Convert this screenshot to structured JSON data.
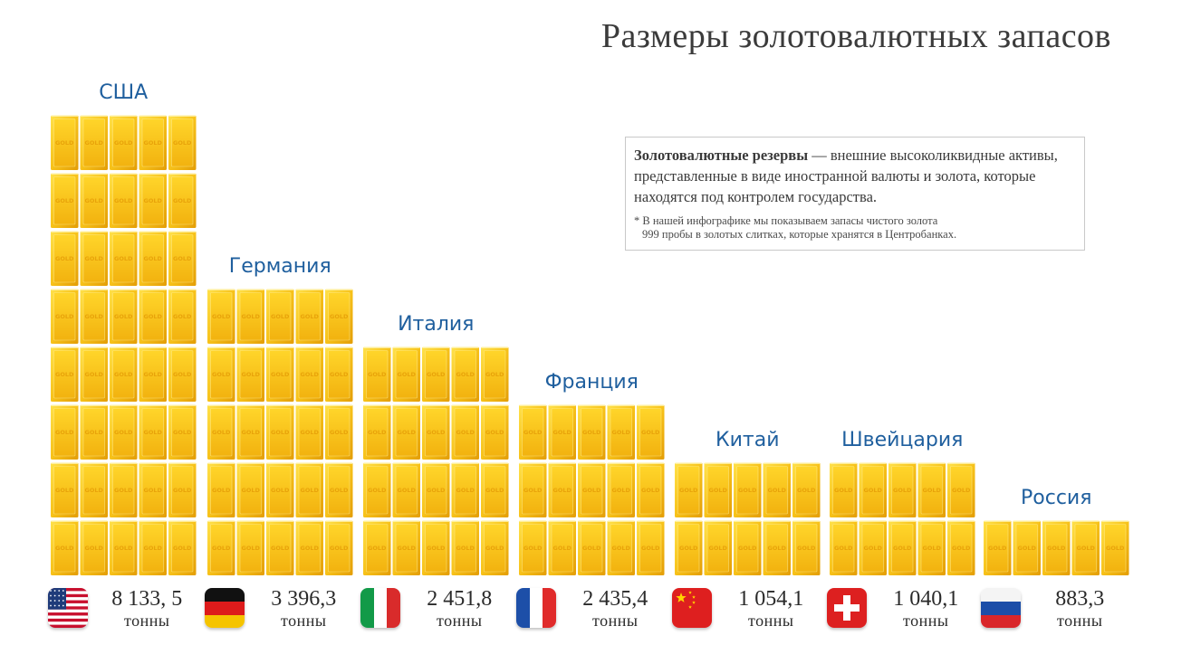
{
  "title": "Размеры золотовалютных запасов",
  "info": {
    "term": "Золотовалютные резервы",
    "definition": " — внешние высоколиквидные активы, представленные в виде иностранной валюты и золота, которые находятся под контролем государства.",
    "note_line1": "* В нашей инфографике мы показываем запасы чистого золота",
    "note_line2": "999 пробы в золотых слитках, которые хранятся в Центробанках."
  },
  "bar_text": "GOLD",
  "colors": {
    "gold_light": "#ffe14a",
    "gold_mid": "#f7c21a",
    "gold_dark": "#e39d06",
    "label_blue": "#1f5f9e"
  },
  "chart_data": {
    "type": "bar",
    "title": "Размеры золотовалютных запасов",
    "unit": "тонны",
    "categories": [
      "США",
      "Германия",
      "Италия",
      "Франция",
      "Китай",
      "Швейцария",
      "Россия"
    ],
    "values": [
      8133.5,
      3396.3,
      2451.8,
      2435.4,
      1054.1,
      1040.1,
      883.3
    ],
    "value_labels": [
      "8 133, 5",
      "3 396,3",
      "2 451,8",
      "2 435,4",
      "1 054,1",
      "1 040,1",
      "883,3"
    ],
    "stack_rows": [
      8,
      5,
      4,
      3,
      2,
      2,
      1
    ],
    "flags": [
      "usa-flag-icon",
      "germany-flag-icon",
      "italy-flag-icon",
      "france-flag-icon",
      "china-flag-icon",
      "switzerland-flag-icon",
      "russia-flag-icon"
    ]
  }
}
